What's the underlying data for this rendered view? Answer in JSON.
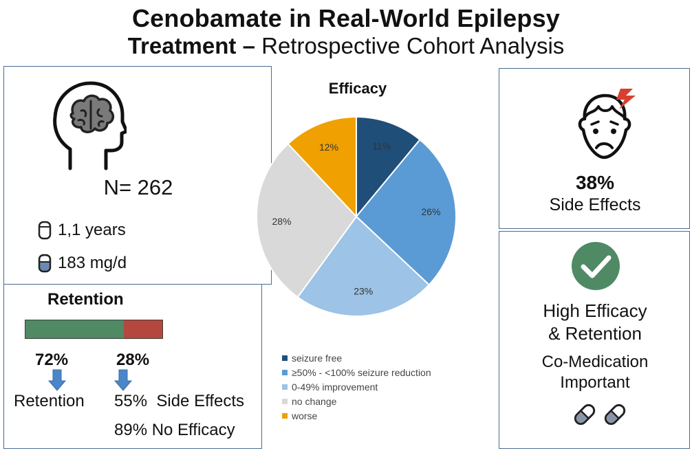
{
  "title": {
    "line1": "Cenobamate in Real-World Epilepsy",
    "line2_bold": "Treatment –",
    "line2_regular": " Retrospective Cohort Analysis"
  },
  "cohort": {
    "icon": "head-with-brain-icon",
    "n_label": "N= 262",
    "duration_icon": "capsule-outline-icon",
    "duration": "1,1 years",
    "dose_icon": "capsule-half-filled-icon",
    "dose": "183 mg/d"
  },
  "retention": {
    "title": "Retention",
    "retained_pct": 72,
    "retained_label": "72%",
    "discontinued_label": "28%",
    "retained_color": "#4f8a64",
    "discontinued_color": "#b4483e",
    "arrow_icon": "down-arrow-icon",
    "retained_caption": "Retention",
    "reason_side_effects": "55%  Side Effects",
    "reason_no_efficacy": "89% No Efficacy"
  },
  "side_effects": {
    "icon": "headache-face-icon",
    "percent": "38%",
    "label": "Side Effects"
  },
  "summary": {
    "icon": "checkmark-circle-icon",
    "line1": "High Efficacy",
    "line2": "& Retention",
    "line3": "Co-Medication",
    "line4": "Important",
    "pill_icon": "pill-capsule-icon"
  },
  "chart_data": {
    "type": "pie",
    "title": "Efficacy",
    "categories": [
      "seizure free",
      "≥50% - <100% seizure reduction",
      "0-49% improvement",
      "no change",
      "worse"
    ],
    "values": [
      11,
      26,
      23,
      28,
      12
    ],
    "value_labels": [
      "11%",
      "26%",
      "23%",
      "28%",
      "12%"
    ],
    "colors": [
      "#1f4e79",
      "#5b9bd5",
      "#9dc3e6",
      "#d9d9d9",
      "#f0a000"
    ],
    "legend_placement": "bottom"
  }
}
